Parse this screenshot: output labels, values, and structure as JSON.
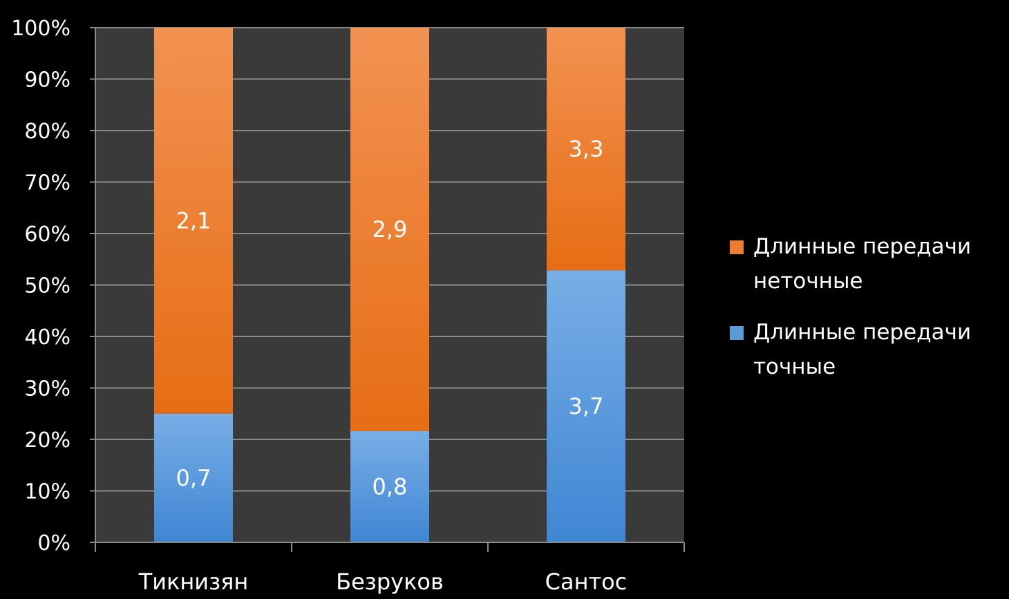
{
  "chart_data": {
    "type": "bar",
    "stacked": "percent",
    "categories": [
      "Тикнизян",
      "Безруков",
      "Сантос"
    ],
    "series": [
      {
        "name": "Длинные передачи точные",
        "values": [
          0.7,
          0.8,
          3.7
        ],
        "labels": [
          "0,7",
          "0,8",
          "3,7"
        ],
        "color": "#5b9bd5"
      },
      {
        "name": "Длинные передачи неточные",
        "values": [
          2.1,
          2.9,
          3.3
        ],
        "labels": [
          "2,1",
          "2,9",
          "3,3"
        ],
        "color": "#ed7d31"
      }
    ],
    "y_ticks": [
      "0%",
      "10%",
      "20%",
      "30%",
      "40%",
      "50%",
      "60%",
      "70%",
      "80%",
      "90%",
      "100%"
    ],
    "ylim": [
      0,
      100
    ],
    "grid": true,
    "legend_position": "right",
    "colors": {
      "background": "#000000",
      "plot_area": "#3a3a3a",
      "gridline": "#8a8a8a",
      "text": "#ffffff"
    }
  }
}
